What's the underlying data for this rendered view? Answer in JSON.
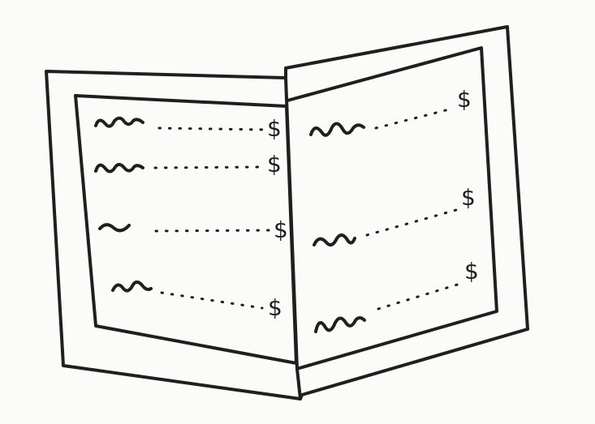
{
  "menu": {
    "left_page": {
      "items": [
        {
          "price_symbol": "$"
        },
        {
          "price_symbol": "$"
        },
        {
          "price_symbol": "$"
        },
        {
          "price_symbol": "$"
        }
      ]
    },
    "right_page": {
      "items": [
        {
          "price_symbol": "$"
        },
        {
          "price_symbol": "$"
        },
        {
          "price_symbol": "$"
        }
      ]
    }
  },
  "style": {
    "ink_color": "#1f1f1f",
    "paper_color": "#fbfbf9"
  }
}
